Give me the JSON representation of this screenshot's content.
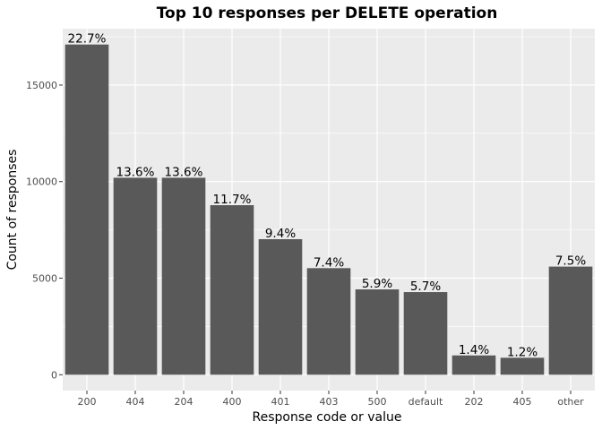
{
  "chart_data": {
    "type": "bar",
    "title": "Top 10 responses per DELETE operation",
    "xlabel": "Response code or value",
    "ylabel": "Count of responses",
    "categories": [
      "200",
      "404",
      "204",
      "400",
      "401",
      "403",
      "500",
      "default",
      "202",
      "405",
      "other"
    ],
    "values": [
      17100,
      10200,
      10200,
      8780,
      7020,
      5520,
      4420,
      4280,
      1000,
      880,
      5600
    ],
    "labels": [
      "22.7%",
      "13.6%",
      "13.6%",
      "11.7%",
      "9.4%",
      "7.4%",
      "5.9%",
      "5.7%",
      "1.4%",
      "1.2%",
      "7.5%"
    ],
    "yticks": [
      0,
      5000,
      10000,
      15000
    ],
    "ytick_labels": [
      "0",
      "5000",
      "10000",
      "15000"
    ],
    "ylim": [
      -820,
      17920
    ],
    "grid": true,
    "colors": {
      "panel": "#ebebeb",
      "grid_major": "#ffffff",
      "bar": "#595959"
    }
  }
}
